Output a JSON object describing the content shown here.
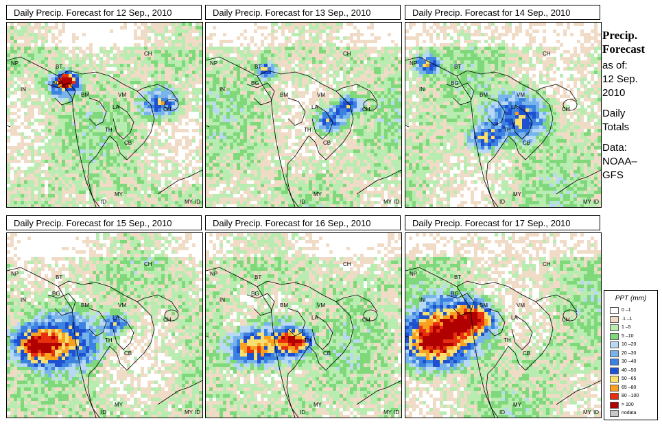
{
  "panels": [
    {
      "title": "Daily Precip. Forecast for  12 Sep., 2010",
      "seed": 11,
      "heavy": [
        [
          0.28,
          0.33,
          0.05
        ],
        [
          0.78,
          0.43,
          0.06
        ],
        [
          0.3,
          0.3,
          0.03
        ]
      ]
    },
    {
      "title": "Daily Precip. Forecast for  13 Sep., 2010",
      "seed": 23,
      "heavy": [
        [
          0.62,
          0.52,
          0.05
        ],
        [
          0.72,
          0.44,
          0.04
        ],
        [
          0.3,
          0.25,
          0.03
        ]
      ]
    },
    {
      "title": "Daily Precip. Forecast for  14 Sep., 2010",
      "seed": 37,
      "heavy": [
        [
          0.58,
          0.5,
          0.09
        ],
        [
          0.4,
          0.62,
          0.05
        ],
        [
          0.1,
          0.22,
          0.04
        ]
      ]
    },
    {
      "title": "Daily Precip. Forecast for  15 Sep., 2010",
      "seed": 41,
      "heavy": [
        [
          0.3,
          0.58,
          0.11
        ],
        [
          0.12,
          0.6,
          0.07
        ],
        [
          0.55,
          0.48,
          0.04
        ]
      ]
    },
    {
      "title": "Daily Precip. Forecast for  16 Sep., 2010",
      "seed": 53,
      "heavy": [
        [
          0.35,
          0.58,
          0.09
        ],
        [
          0.2,
          0.62,
          0.07
        ],
        [
          0.45,
          0.58,
          0.05
        ]
      ]
    },
    {
      "title": "Daily Precip. Forecast for  17 Sep., 2010",
      "seed": 67,
      "heavy": [
        [
          0.25,
          0.5,
          0.12
        ],
        [
          0.12,
          0.6,
          0.1
        ],
        [
          0.35,
          0.45,
          0.06
        ]
      ]
    }
  ],
  "map_labels": [
    {
      "text": "CH"
    },
    {
      "text": "NP"
    },
    {
      "text": "BT"
    },
    {
      "text": "IN"
    },
    {
      "text": "BG"
    },
    {
      "text": "BM"
    },
    {
      "text": "VM"
    },
    {
      "text": "LA"
    },
    {
      "text": "CH"
    },
    {
      "text": "TH"
    },
    {
      "text": "CB"
    },
    {
      "text": "MY"
    },
    {
      "text": "ID"
    },
    {
      "text": "MY"
    },
    {
      "text": "ID"
    }
  ],
  "side": {
    "title1": "Precip.",
    "title2": "Forecast",
    "asof": "as of:",
    "date1": "12 Sep.",
    "date2": "2010",
    "daily1": "Daily",
    "daily2": "Totals",
    "data1": "Data:",
    "data2": "NOAA–",
    "data3": "GFS"
  },
  "legend": {
    "title": "PPT (mm)",
    "items": [
      {
        "label": "0 –1",
        "color": "#ffffff"
      },
      {
        "label": ".1 –1",
        "color": "#f0dcc6"
      },
      {
        "label": "1 –5",
        "color": "#b8ecb0"
      },
      {
        "label": "5 –10",
        "color": "#7fd87a"
      },
      {
        "label": "10 –20",
        "color": "#b8d8f4"
      },
      {
        "label": "20 –30",
        "color": "#78b4ec"
      },
      {
        "label": "30 –40",
        "color": "#3c82e0"
      },
      {
        "label": "40 –50",
        "color": "#1e50d0"
      },
      {
        "label": "50 –65",
        "color": "#f8e070"
      },
      {
        "label": "65 –80",
        "color": "#f8a020"
      },
      {
        "label": "80 –100",
        "color": "#e83010"
      },
      {
        "label": "> 100",
        "color": "#b00000"
      },
      {
        "label": "nodata",
        "color": "#c8c8c8"
      }
    ]
  }
}
